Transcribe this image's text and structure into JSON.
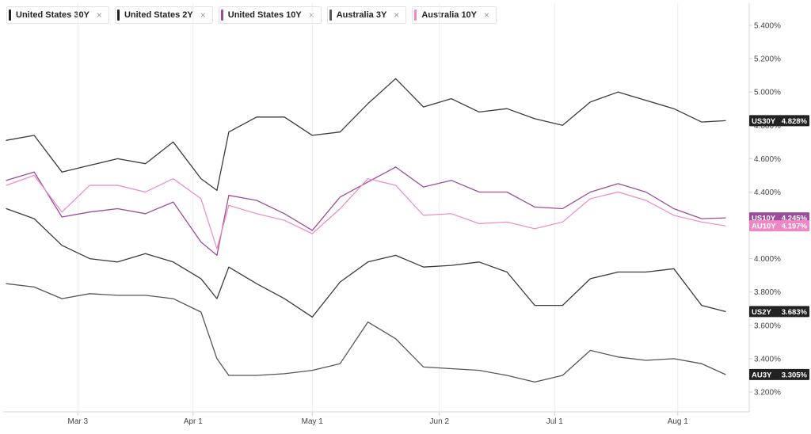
{
  "legend": [
    {
      "label": "United States 30Y",
      "color": "#222222"
    },
    {
      "label": "United States 2Y",
      "color": "#222222"
    },
    {
      "label": "United States 10Y",
      "color": "#9b4d9b"
    },
    {
      "label": "Australia 3Y",
      "color": "#555555"
    },
    {
      "label": "Australia 10Y",
      "color": "#ee88c4"
    }
  ],
  "close_icon": "close-icon",
  "chart_data": {
    "type": "line",
    "grid": true,
    "legend_placement": "top-left",
    "xlabel": "",
    "ylabel": "",
    "xlim": [
      "2025-02-13",
      "2025-08-15"
    ],
    "ylim": [
      3.1,
      5.5
    ],
    "x_ticks": [
      {
        "label": "Mar 3",
        "date": "2025-03-03"
      },
      {
        "label": "Apr 1",
        "date": "2025-04-01"
      },
      {
        "label": "May 1",
        "date": "2025-05-01"
      },
      {
        "label": "Jun 2",
        "date": "2025-06-02"
      },
      {
        "label": "Jul 1",
        "date": "2025-07-01"
      },
      {
        "label": "Aug 1",
        "date": "2025-08-01"
      }
    ],
    "y_ticks": [
      "3.200%",
      "3.400%",
      "3.600%",
      "3.800%",
      "4.000%",
      "4.200%",
      "4.400%",
      "4.600%",
      "4.800%",
      "5.000%",
      "5.200%",
      "5.400%"
    ],
    "y_tick_values": [
      3.2,
      3.4,
      3.6,
      3.8,
      4.0,
      4.2,
      4.4,
      4.6,
      4.8,
      5.0,
      5.2,
      5.4
    ],
    "x": [
      "2025-02-13",
      "2025-02-20",
      "2025-02-27",
      "2025-03-06",
      "2025-03-13",
      "2025-03-20",
      "2025-03-27",
      "2025-04-03",
      "2025-04-07",
      "2025-04-10",
      "2025-04-17",
      "2025-04-24",
      "2025-05-01",
      "2025-05-08",
      "2025-05-15",
      "2025-05-22",
      "2025-05-29",
      "2025-06-05",
      "2025-06-12",
      "2025-06-19",
      "2025-06-26",
      "2025-07-03",
      "2025-07-10",
      "2025-07-17",
      "2025-07-24",
      "2025-07-31",
      "2025-08-07",
      "2025-08-13"
    ],
    "series": [
      {
        "name": "United States 30Y",
        "color": "#3a3a3a",
        "width": 1.3,
        "values": [
          4.71,
          4.74,
          4.52,
          4.56,
          4.6,
          4.57,
          4.7,
          4.48,
          4.41,
          4.76,
          4.85,
          4.85,
          4.74,
          4.76,
          4.93,
          5.08,
          4.91,
          4.96,
          4.88,
          4.9,
          4.84,
          4.8,
          4.94,
          5.0,
          4.95,
          4.9,
          4.82,
          4.828
        ],
        "end_label": {
          "code": "US30Y",
          "value": "4.828%",
          "bg": "#222222"
        }
      },
      {
        "name": "United States 2Y",
        "color": "#3a3a3a",
        "width": 1.3,
        "values": [
          4.3,
          4.24,
          4.08,
          4.0,
          3.98,
          4.03,
          3.98,
          3.88,
          3.76,
          3.95,
          3.85,
          3.76,
          3.65,
          3.86,
          3.98,
          4.02,
          3.95,
          3.96,
          3.98,
          3.92,
          3.72,
          3.72,
          3.88,
          3.92,
          3.92,
          3.94,
          3.72,
          3.683
        ],
        "end_label": {
          "code": "US2Y",
          "value": "3.683%",
          "bg": "#222222"
        }
      },
      {
        "name": "United States 10Y",
        "color": "#9b4d9b",
        "width": 1.3,
        "values": [
          4.47,
          4.52,
          4.25,
          4.28,
          4.3,
          4.27,
          4.34,
          4.1,
          4.02,
          4.38,
          4.35,
          4.27,
          4.17,
          4.37,
          4.46,
          4.55,
          4.43,
          4.47,
          4.4,
          4.4,
          4.31,
          4.3,
          4.4,
          4.45,
          4.4,
          4.3,
          4.24,
          4.245
        ],
        "end_label": {
          "code": "US10Y",
          "value": "4.245%",
          "bg": "#9b4d9b"
        }
      },
      {
        "name": "Australia 3Y",
        "color": "#555555",
        "width": 1.3,
        "values": [
          3.85,
          3.83,
          3.76,
          3.79,
          3.78,
          3.78,
          3.76,
          3.68,
          3.4,
          3.3,
          3.3,
          3.31,
          3.33,
          3.37,
          3.62,
          3.52,
          3.35,
          3.34,
          3.33,
          3.3,
          3.26,
          3.3,
          3.45,
          3.41,
          3.39,
          3.4,
          3.37,
          3.305
        ],
        "end_label": {
          "code": "AU3Y",
          "value": "3.305%",
          "bg": "#222222"
        }
      },
      {
        "name": "Australia 10Y",
        "color": "#ee88c4",
        "width": 1.2,
        "values": [
          4.44,
          4.5,
          4.28,
          4.44,
          4.44,
          4.4,
          4.48,
          4.36,
          4.06,
          4.32,
          4.27,
          4.23,
          4.15,
          4.3,
          4.48,
          4.44,
          4.26,
          4.27,
          4.21,
          4.22,
          4.18,
          4.22,
          4.36,
          4.4,
          4.35,
          4.26,
          4.22,
          4.197
        ],
        "end_label": {
          "code": "AU10Y",
          "value": "4.197%",
          "bg": "#ee88c4"
        }
      }
    ]
  }
}
